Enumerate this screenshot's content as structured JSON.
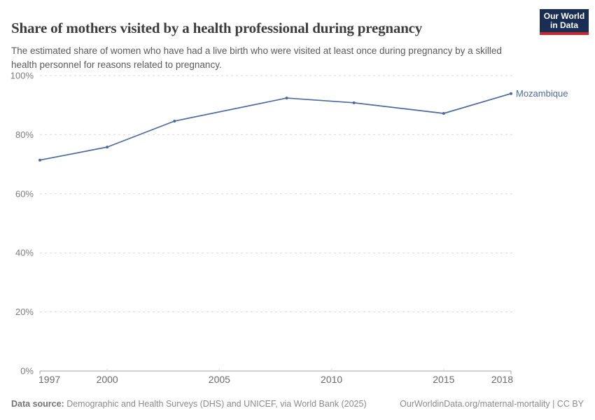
{
  "header": {
    "title": "Share of mothers visited by a health professional during pregnancy",
    "subtitle": "The estimated share of women who have had a live birth who were visited at least once during pregnancy by a skilled health personnel for reasons related to pregnancy.",
    "logo": {
      "line1": "Our World",
      "line2": "in Data",
      "bg_color": "#192e52",
      "accent_color": "#c52b33"
    }
  },
  "chart_data": {
    "type": "line",
    "title": "Share of mothers visited by a health professional during pregnancy",
    "x": [
      1997,
      2000,
      2003,
      2008,
      2011,
      2015,
      2018
    ],
    "series": [
      {
        "name": "Mozambique",
        "color": "#4c6a9c",
        "values": [
          71.4,
          75.8,
          84.6,
          92.4,
          90.8,
          87.2,
          93.9
        ]
      }
    ],
    "xlim": [
      1997,
      2018
    ],
    "ylim": [
      0,
      100
    ],
    "x_ticks": [
      {
        "label": "1997",
        "value": 1997
      },
      {
        "label": "2000",
        "value": 2000
      },
      {
        "label": "2005",
        "value": 2005
      },
      {
        "label": "2010",
        "value": 2010
      },
      {
        "label": "2015",
        "value": 2015
      },
      {
        "label": "2018",
        "value": 2018
      }
    ],
    "y_ticks": [
      {
        "label": "0%",
        "value": 0
      },
      {
        "label": "20%",
        "value": 20
      },
      {
        "label": "40%",
        "value": 40
      },
      {
        "label": "60%",
        "value": 60
      },
      {
        "label": "80%",
        "value": 80
      },
      {
        "label": "100%",
        "value": 100
      }
    ],
    "grid": "horizontal-dashed",
    "legend_position": "end-of-line-label",
    "colors": {
      "gridline": "#d9d9d9",
      "axis_line": "#a3a3a3",
      "y_tick_text": "#7d7d7d",
      "x_tick_text": "#6b6b6b"
    }
  },
  "footer": {
    "datasource_label": "Data source:",
    "datasource_text": " Demographic and Health Surveys (DHS) and UNICEF, via World Bank (2025)",
    "credit": "OurWorldinData.org/maternal-mortality | CC BY"
  }
}
